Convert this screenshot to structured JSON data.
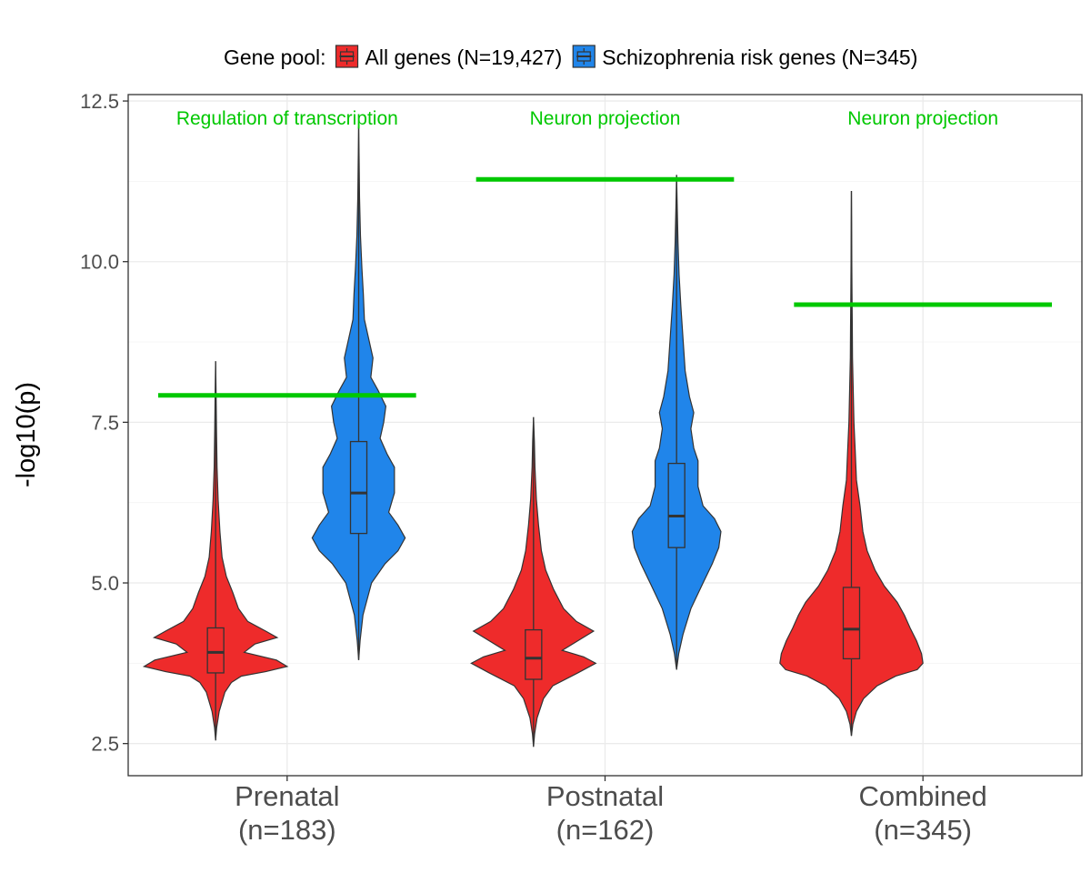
{
  "legend": {
    "title": "Gene pool:",
    "position": "top"
  },
  "chart_data": {
    "type": "violin",
    "ylabel": "-log10(p)",
    "xlabel": "",
    "ylim": [
      2.0,
      12.6
    ],
    "yticks": [
      "2.5",
      "5.0",
      "7.5",
      "10.0",
      "12.5"
    ],
    "yticks_values": [
      2.5,
      5.0,
      7.5,
      10.0,
      12.5
    ],
    "grid": true,
    "categories": [
      {
        "line1": "Prenatal",
        "line2": "(n=183)"
      },
      {
        "line1": "Postnatal",
        "line2": "(n=162)"
      },
      {
        "line1": "Combined",
        "line2": "(n=345)"
      }
    ],
    "series": [
      {
        "name": "All genes (N=19,427)",
        "color": "#EE2B2B",
        "groups": [
          {
            "category": 0,
            "min": 2.55,
            "max": 8.45,
            "q1": 3.6,
            "median": 3.92,
            "q3": 4.3,
            "whisker_low": 2.55,
            "whisker_high": 8.45,
            "density": [
              [
                2.55,
                0.0
              ],
              [
                2.75,
                0.015
              ],
              [
                3.0,
                0.05
              ],
              [
                3.3,
                0.13
              ],
              [
                3.45,
                0.22
              ],
              [
                3.55,
                0.36
              ],
              [
                3.62,
                0.7
              ],
              [
                3.7,
                1.0
              ],
              [
                3.8,
                0.85
              ],
              [
                3.92,
                0.4
              ],
              [
                4.05,
                0.55
              ],
              [
                4.15,
                0.86
              ],
              [
                4.25,
                0.7
              ],
              [
                4.4,
                0.45
              ],
              [
                4.6,
                0.32
              ],
              [
                4.85,
                0.24
              ],
              [
                5.1,
                0.15
              ],
              [
                5.4,
                0.09
              ],
              [
                5.8,
                0.06
              ],
              [
                6.3,
                0.035
              ],
              [
                6.8,
                0.02
              ],
              [
                7.4,
                0.012
              ],
              [
                8.0,
                0.006
              ],
              [
                8.45,
                0.0
              ]
            ]
          },
          {
            "category": 1,
            "min": 2.45,
            "max": 7.58,
            "q1": 3.5,
            "median": 3.83,
            "q3": 4.27,
            "whisker_low": 2.45,
            "whisker_high": 7.58,
            "density": [
              [
                2.45,
                0.0
              ],
              [
                2.65,
                0.015
              ],
              [
                2.9,
                0.05
              ],
              [
                3.2,
                0.14
              ],
              [
                3.4,
                0.27
              ],
              [
                3.6,
                0.62
              ],
              [
                3.75,
                0.87
              ],
              [
                3.85,
                0.7
              ],
              [
                3.95,
                0.4
              ],
              [
                4.1,
                0.62
              ],
              [
                4.25,
                0.84
              ],
              [
                4.4,
                0.6
              ],
              [
                4.6,
                0.42
              ],
              [
                4.9,
                0.28
              ],
              [
                5.2,
                0.17
              ],
              [
                5.5,
                0.11
              ],
              [
                5.9,
                0.07
              ],
              [
                6.3,
                0.04
              ],
              [
                6.8,
                0.02
              ],
              [
                7.2,
                0.012
              ],
              [
                7.58,
                0.0
              ]
            ]
          },
          {
            "category": 2,
            "min": 2.62,
            "max": 11.1,
            "q1": 3.82,
            "median": 4.28,
            "q3": 4.93,
            "whisker_low": 2.62,
            "whisker_high": 11.1,
            "density": [
              [
                2.62,
                0.0
              ],
              [
                2.8,
                0.02
              ],
              [
                3.0,
                0.07
              ],
              [
                3.2,
                0.17
              ],
              [
                3.4,
                0.36
              ],
              [
                3.55,
                0.62
              ],
              [
                3.65,
                0.92
              ],
              [
                3.75,
                1.0
              ],
              [
                3.9,
                0.98
              ],
              [
                4.1,
                0.91
              ],
              [
                4.3,
                0.82
              ],
              [
                4.5,
                0.74
              ],
              [
                4.7,
                0.64
              ],
              [
                4.95,
                0.46
              ],
              [
                5.2,
                0.33
              ],
              [
                5.5,
                0.22
              ],
              [
                5.8,
                0.16
              ],
              [
                6.2,
                0.12
              ],
              [
                6.6,
                0.07
              ],
              [
                7.0,
                0.055
              ],
              [
                7.5,
                0.035
              ],
              [
                8.0,
                0.025
              ],
              [
                8.5,
                0.015
              ],
              [
                9.0,
                0.012
              ],
              [
                9.5,
                0.008
              ],
              [
                10.0,
                0.005
              ],
              [
                10.6,
                0.003
              ],
              [
                11.1,
                0.0
              ]
            ]
          }
        ]
      },
      {
        "name": "Schizophrenia risk genes (N=345)",
        "color": "#2085EA",
        "groups": [
          {
            "category": 0,
            "min": 3.8,
            "max": 12.1,
            "q1": 5.77,
            "median": 6.4,
            "q3": 7.2,
            "whisker_low": 3.8,
            "whisker_high": 12.1,
            "density": [
              [
                3.8,
                0.0
              ],
              [
                4.1,
                0.02
              ],
              [
                4.5,
                0.06
              ],
              [
                5.0,
                0.18
              ],
              [
                5.3,
                0.37
              ],
              [
                5.5,
                0.55
              ],
              [
                5.7,
                0.65
              ],
              [
                5.9,
                0.55
              ],
              [
                6.1,
                0.42
              ],
              [
                6.4,
                0.5
              ],
              [
                6.8,
                0.5
              ],
              [
                7.0,
                0.4
              ],
              [
                7.25,
                0.3
              ],
              [
                7.5,
                0.35
              ],
              [
                7.75,
                0.38
              ],
              [
                8.0,
                0.27
              ],
              [
                8.2,
                0.17
              ],
              [
                8.5,
                0.2
              ],
              [
                8.8,
                0.14
              ],
              [
                9.1,
                0.08
              ],
              [
                9.5,
                0.065
              ],
              [
                9.9,
                0.045
              ],
              [
                10.4,
                0.025
              ],
              [
                11.0,
                0.012
              ],
              [
                11.6,
                0.006
              ],
              [
                12.1,
                0.0
              ]
            ]
          },
          {
            "category": 1,
            "min": 3.65,
            "max": 11.35,
            "q1": 5.55,
            "median": 6.04,
            "q3": 6.86,
            "whisker_low": 3.65,
            "whisker_high": 11.35,
            "density": [
              [
                3.65,
                0.0
              ],
              [
                3.9,
                0.03
              ],
              [
                4.2,
                0.09
              ],
              [
                4.6,
                0.2
              ],
              [
                5.0,
                0.37
              ],
              [
                5.3,
                0.5
              ],
              [
                5.55,
                0.59
              ],
              [
                5.8,
                0.62
              ],
              [
                6.0,
                0.53
              ],
              [
                6.2,
                0.37
              ],
              [
                6.5,
                0.3
              ],
              [
                6.9,
                0.3
              ],
              [
                7.1,
                0.24
              ],
              [
                7.4,
                0.2
              ],
              [
                7.65,
                0.24
              ],
              [
                7.9,
                0.18
              ],
              [
                8.3,
                0.12
              ],
              [
                8.8,
                0.09
              ],
              [
                9.3,
                0.06
              ],
              [
                9.8,
                0.035
              ],
              [
                10.3,
                0.02
              ],
              [
                10.8,
                0.01
              ],
              [
                11.35,
                0.0
              ]
            ]
          }
        ]
      }
    ],
    "thresholds": [
      {
        "category": 0,
        "value": 7.92,
        "label": "Regulation of transcription",
        "color": "#00C800"
      },
      {
        "category": 1,
        "value": 11.28,
        "label": "Neuron projection",
        "color": "#00C800"
      },
      {
        "category": 2,
        "value": 9.33,
        "label": "Neuron projection",
        "color": "#00C800"
      }
    ]
  }
}
